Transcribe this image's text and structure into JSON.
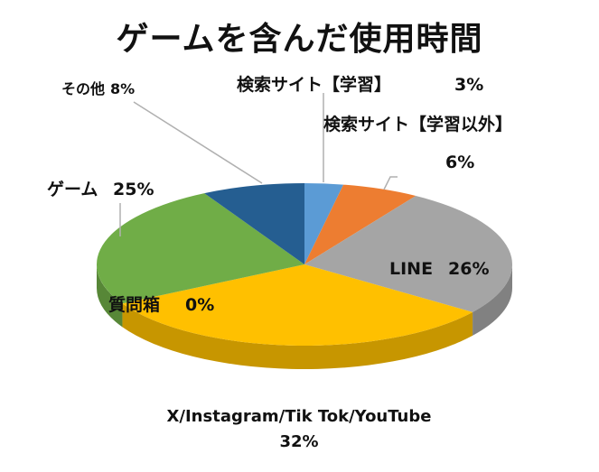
{
  "chart_data": {
    "type": "pie",
    "title": "ゲームを含んだ使用時間",
    "slices": [
      {
        "label": "検索サイト【学習】",
        "value": 3,
        "display": "3%",
        "color": "#5b9bd5"
      },
      {
        "label": "検索サイト【学習以外】",
        "value": 6,
        "display": "6%",
        "color": "#ed7d31"
      },
      {
        "label": "LINE",
        "value": 26,
        "display": "26%",
        "color": "#a5a5a5"
      },
      {
        "label": "X/Instagram/Tik Tok/YouTube",
        "value": 32,
        "display": "32%",
        "color": "#ffc000"
      },
      {
        "label": "質問箱",
        "value": 0,
        "display": "0%",
        "color": "#4472c4"
      },
      {
        "label": "ゲーム",
        "value": 25,
        "display": "25%",
        "color": "#70ad47"
      },
      {
        "label": "その他",
        "value": 8,
        "display": "8%",
        "color": "#255e91"
      }
    ],
    "legend": "none"
  }
}
